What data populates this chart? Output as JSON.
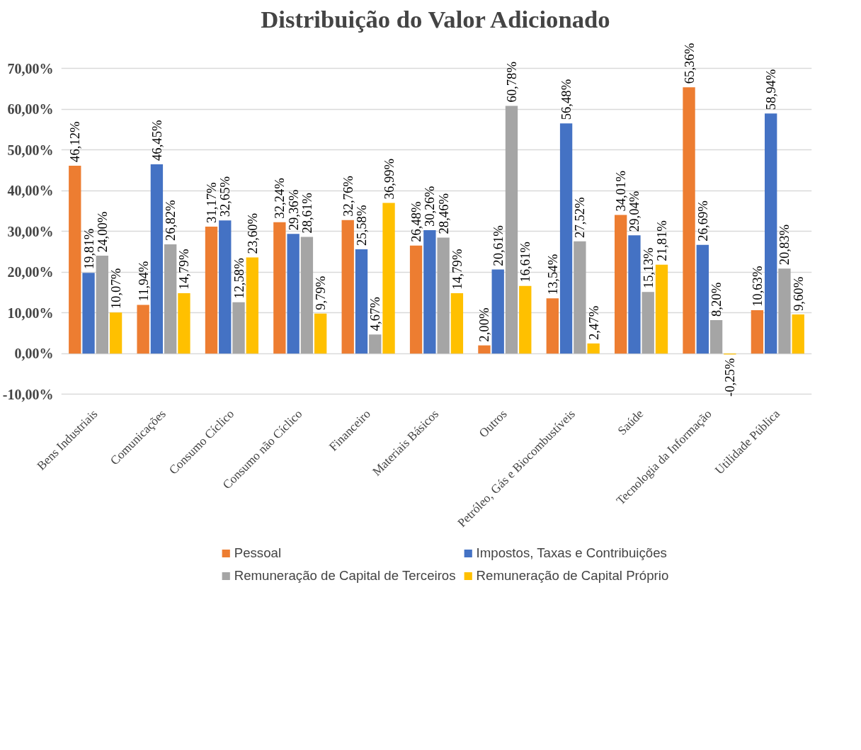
{
  "chart_data": {
    "type": "bar",
    "title": "Distribuição do Valor Adicionado",
    "categories": [
      "Bens Industriais",
      "Comunicações",
      "Consumo Cíclico",
      "Consumo não Cíclico",
      "Financeiro",
      "Materiais Básicos",
      "Outros",
      "Petróleo, Gás e Biocombustíveis",
      "Saúde",
      "Tecnologia da Informação",
      "Utilidade Pública"
    ],
    "series": [
      {
        "name": "Pessoal",
        "color": "#ed7d31",
        "values": [
          46.12,
          11.94,
          31.17,
          32.24,
          32.76,
          26.48,
          2.0,
          13.54,
          34.01,
          65.36,
          10.63
        ],
        "value_labels": [
          "46,12%",
          "11,94%",
          "31,17%",
          "32,24%",
          "32,76%",
          "26,48%",
          "2,00%",
          "13,54%",
          "34,01%",
          "65,36%",
          "10,63%"
        ]
      },
      {
        "name": "Impostos, Taxas e Contribuições",
        "color": "#4472c4",
        "values": [
          19.81,
          46.45,
          32.65,
          29.36,
          25.58,
          30.26,
          20.61,
          56.48,
          29.04,
          26.69,
          58.94
        ],
        "value_labels": [
          "19,81%",
          "46,45%",
          "32,65%",
          "29,36%",
          "25,58%",
          "30,26%",
          "20,61%",
          "56,48%",
          "29,04%",
          "26,69%",
          "58,94%"
        ]
      },
      {
        "name": "Remuneração de Capital de Terceiros",
        "color": "#a5a5a5",
        "values": [
          24.0,
          26.82,
          12.58,
          28.61,
          4.67,
          28.46,
          60.78,
          27.52,
          15.13,
          8.2,
          20.83
        ],
        "value_labels": [
          "24,00%",
          "26,82%",
          "12,58%",
          "28,61%",
          "4,67%",
          "28,46%",
          "60,78%",
          "27,52%",
          "15,13%",
          "8,20%",
          "20,83%"
        ]
      },
      {
        "name": "Remuneração de Capital Próprio",
        "color": "#ffc000",
        "values": [
          10.07,
          14.79,
          23.6,
          9.79,
          36.99,
          14.79,
          16.61,
          2.47,
          21.81,
          -0.25,
          9.6
        ],
        "value_labels": [
          "10,07%",
          "14,79%",
          "23,60%",
          "9,79%",
          "36,99%",
          "14,79%",
          "16,61%",
          "2,47%",
          "21,81%",
          "-0,25%",
          "9,60%"
        ]
      }
    ],
    "ylim": [
      -10,
      70
    ],
    "yticks": [
      {
        "value": -10,
        "label": "-10,00%"
      },
      {
        "value": 0,
        "label": "0,00%"
      },
      {
        "value": 10,
        "label": "10,00%"
      },
      {
        "value": 20,
        "label": "20,00%"
      },
      {
        "value": 30,
        "label": "30,00%"
      },
      {
        "value": 40,
        "label": "40,00%"
      },
      {
        "value": 50,
        "label": "50,00%"
      },
      {
        "value": 60,
        "label": "60,00%"
      },
      {
        "value": 70,
        "label": "70,00%"
      }
    ],
    "grid": "y",
    "legend": "bottom"
  }
}
